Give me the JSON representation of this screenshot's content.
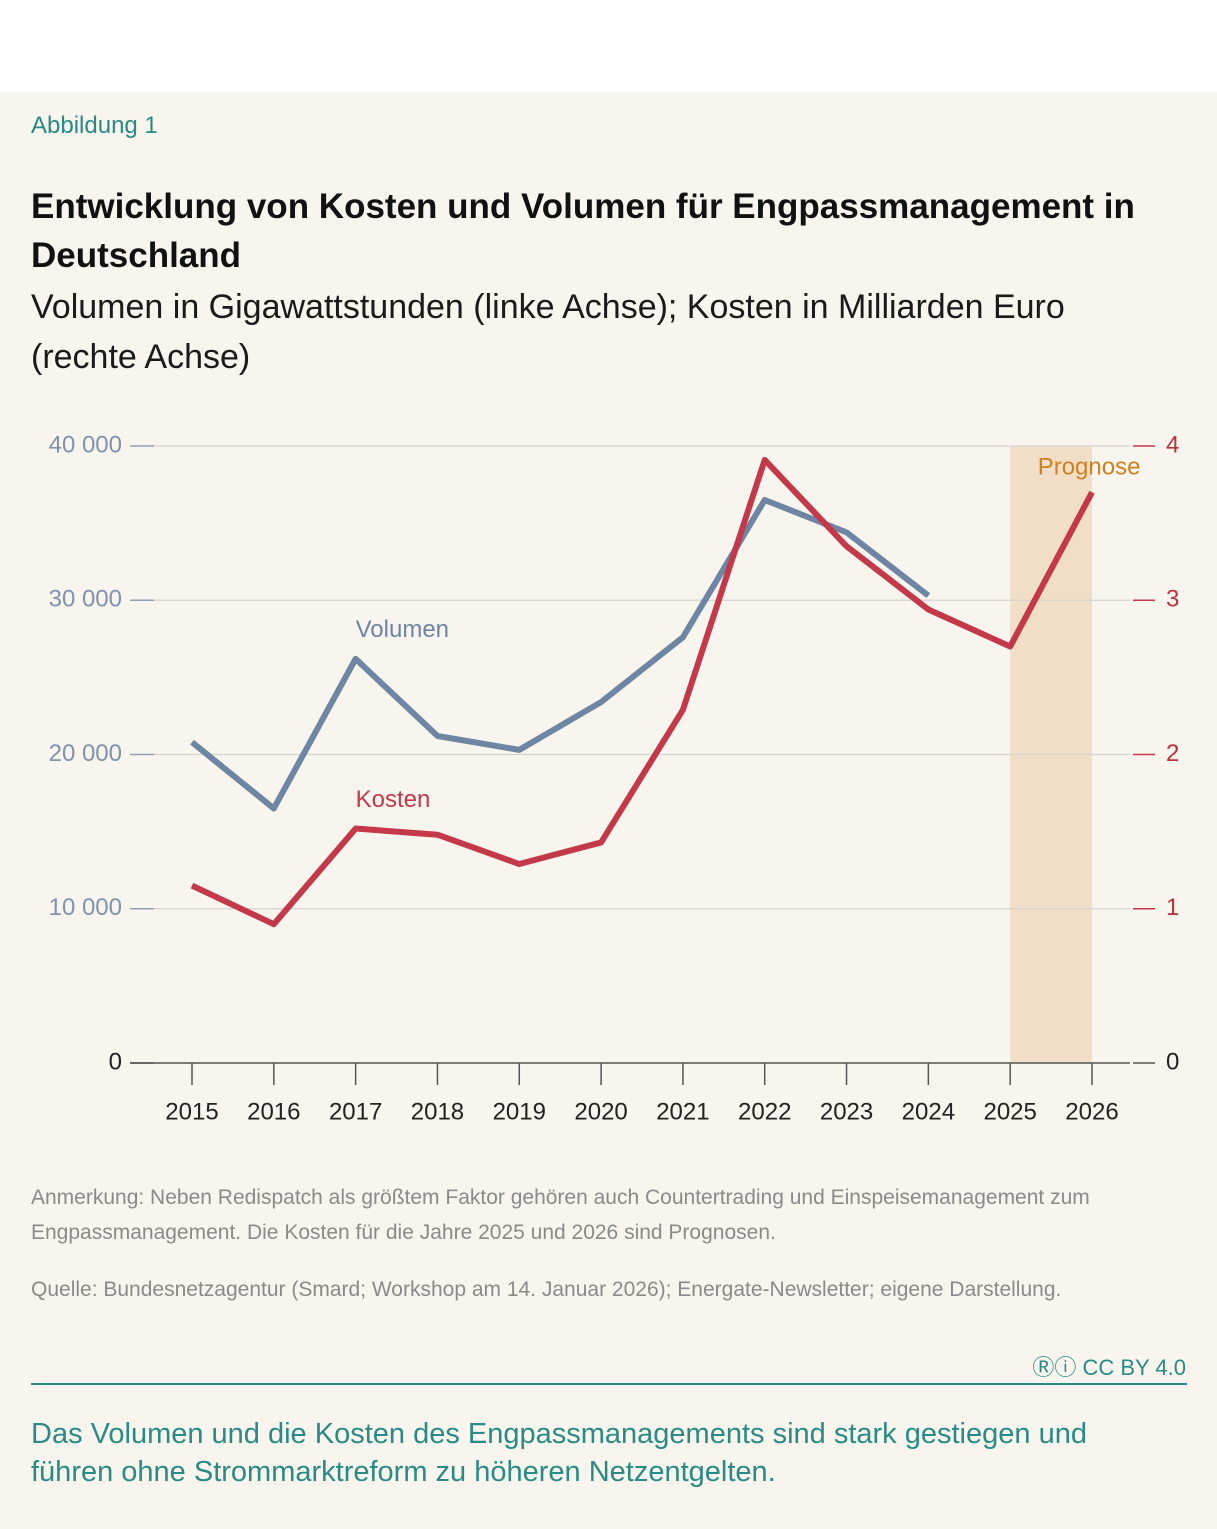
{
  "header": {
    "figure_label": "Abbildung 1",
    "title": "Entwicklung von Kosten und Volumen für Engpassmanagement in Deutschland",
    "subtitle": "Volumen in Gigawattstunden (linke Achse); Kosten in Milliarden Euro (rechte Achse)"
  },
  "chart_data": {
    "type": "line",
    "categories": [
      "2015",
      "2016",
      "2017",
      "2018",
      "2019",
      "2020",
      "2021",
      "2022",
      "2023",
      "2024",
      "2025",
      "2026"
    ],
    "series": [
      {
        "name": "Volumen",
        "color": "#6e86a3",
        "values": [
          20800,
          16500,
          26200,
          21200,
          20300,
          23400,
          27600,
          36500,
          34400,
          30300,
          null,
          null
        ]
      },
      {
        "name": "Kosten",
        "color": "#c4394a",
        "axis": "y2",
        "values": [
          1.15,
          0.9,
          1.52,
          1.48,
          1.29,
          1.43,
          2.29,
          3.91,
          3.35,
          2.94,
          2.7,
          3.7
        ]
      }
    ],
    "ylim": [
      0,
      40000
    ],
    "yticks": [
      0,
      {
        "value": 10000,
        "label": "10 000"
      },
      {
        "value": 20000,
        "label": "20 000"
      },
      {
        "value": 30000,
        "label": "30 000"
      },
      {
        "value": 40000,
        "label": "40 000"
      }
    ],
    "y2lim": [
      0,
      4
    ],
    "y2ticks": [
      0,
      1,
      2,
      3,
      4
    ],
    "grid": true,
    "shaded_region": {
      "from": "2025",
      "to": "2026",
      "label": "Prognose",
      "color": "#f0dfc6"
    }
  },
  "footer": {
    "note": "Anmerkung: Neben Redispatch als größtem Faktor gehören auch Countertrading und Einspeisemanagement zum Engpassmanagement. Die Kosten für die Jahre 2025 und 2026 sind Prognosen.",
    "source": "Quelle: Bundesnetzagentur (Smard; Workshop am 14. Januar 2026); Energate-Newsletter; eigene Darstellung.",
    "license": "CC BY 4.0",
    "takeaway": "Das Volumen und die Kosten des Engpassmanagements sind stark gestiegen und führen ohne Strommarktreform zu höheren Netzentgelten."
  }
}
